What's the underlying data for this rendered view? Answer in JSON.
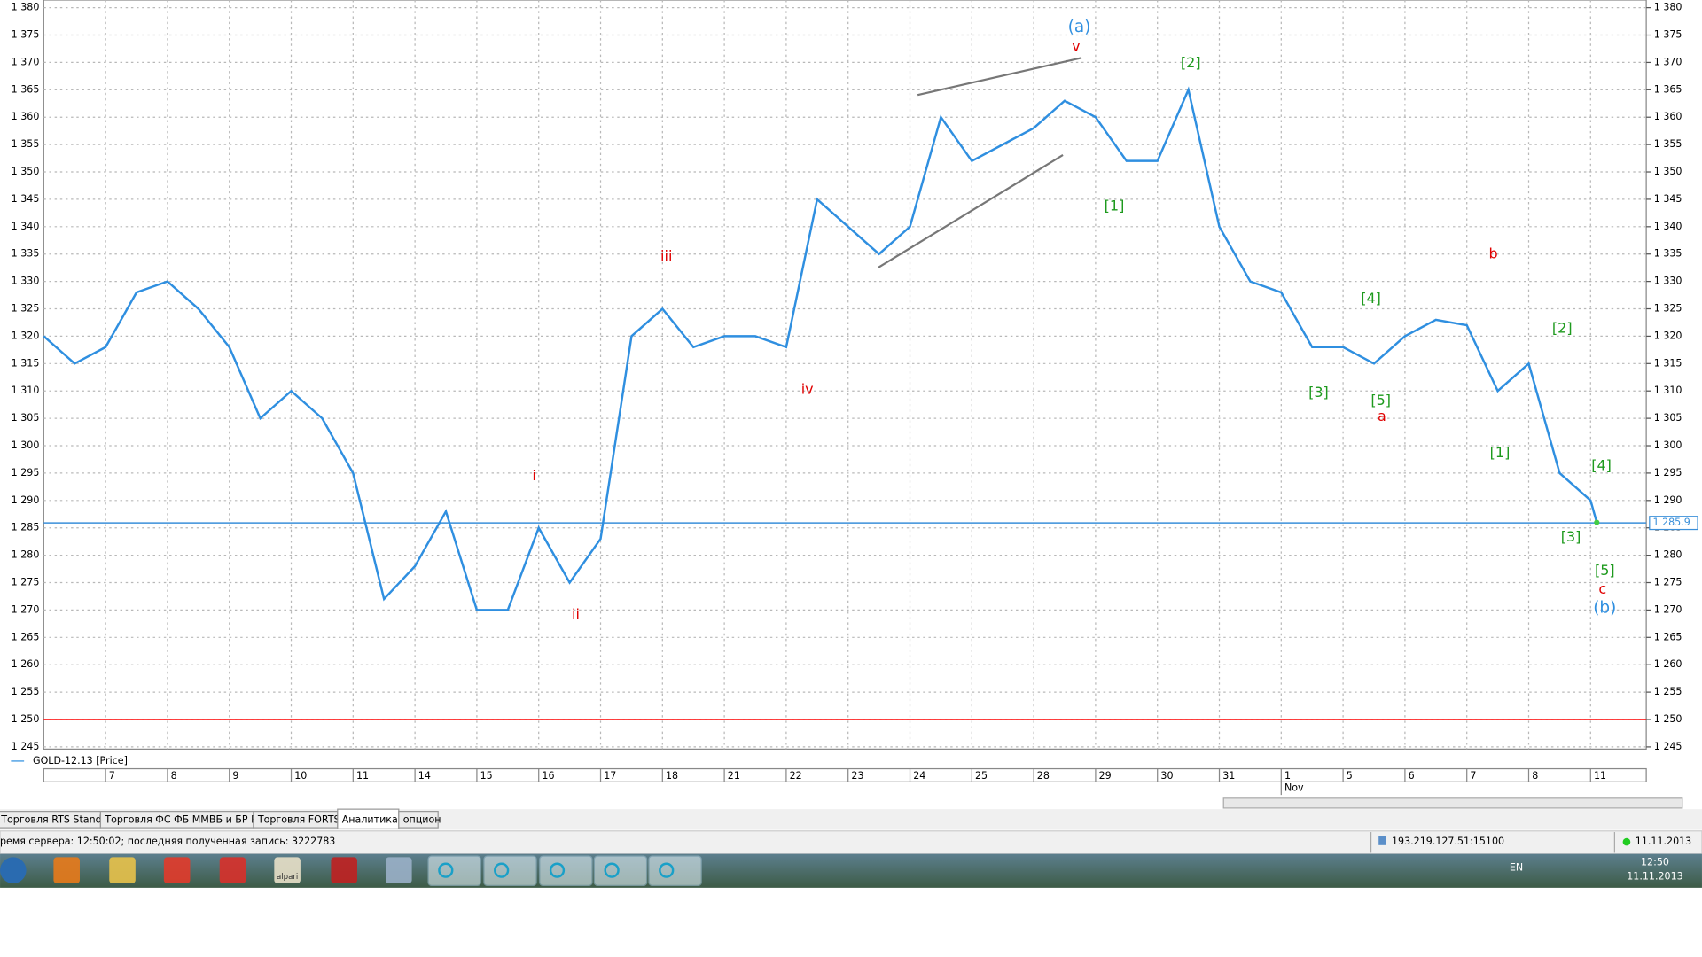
{
  "chart_data": {
    "type": "line",
    "x": [
      -1,
      -0.5,
      0,
      0.5,
      1,
      1.5,
      2,
      2.5,
      3,
      3.5,
      4,
      4.5,
      5,
      5.5,
      6,
      6.5,
      7,
      7.5,
      8,
      8.5,
      9,
      9.5,
      10,
      10.5,
      11,
      11.5,
      12,
      12.5,
      13,
      13.5,
      14,
      14.5,
      15,
      15.5,
      16,
      16.5,
      17,
      17.5,
      18,
      18.5,
      19,
      19.5,
      20,
      20.5,
      21,
      21.5,
      22,
      22.5,
      23,
      23.5,
      24,
      24.1
    ],
    "series": [
      {
        "name": "GOLD-12.13 [Price]",
        "color": "#2f8fe0",
        "values": [
          1320,
          1315,
          1318,
          1328,
          1330,
          1325,
          1318,
          1305,
          1310,
          1305,
          1295,
          1272,
          1278,
          1288,
          1270,
          1270,
          1285,
          1275,
          1283,
          1320,
          1325,
          1318,
          1320,
          1320,
          1318,
          1345,
          1340,
          1335,
          1340,
          1360,
          1352,
          1355,
          1358,
          1363,
          1360,
          1352,
          1352,
          1365,
          1340,
          1330,
          1328,
          1318,
          1318,
          1315,
          1320,
          1323,
          1322,
          1310,
          1315,
          1295,
          1290,
          1286
        ]
      }
    ],
    "xlim": [
      -1,
      24.9
    ],
    "xticks": [
      {
        "value": 0,
        "label": "7"
      },
      {
        "value": 1,
        "label": "8"
      },
      {
        "value": 2,
        "label": "9"
      },
      {
        "value": 3,
        "label": "10"
      },
      {
        "value": 4,
        "label": "11"
      },
      {
        "value": 5,
        "label": "14"
      },
      {
        "value": 6,
        "label": "15"
      },
      {
        "value": 7,
        "label": "16"
      },
      {
        "value": 8,
        "label": "17"
      },
      {
        "value": 9,
        "label": "18"
      },
      {
        "value": 10,
        "label": "21"
      },
      {
        "value": 11,
        "label": "22"
      },
      {
        "value": 12,
        "label": "23"
      },
      {
        "value": 13,
        "label": "24"
      },
      {
        "value": 14,
        "label": "25"
      },
      {
        "value": 15,
        "label": "28"
      },
      {
        "value": 16,
        "label": "29"
      },
      {
        "value": 17,
        "label": "30"
      },
      {
        "value": 18,
        "label": "31"
      },
      {
        "value": 19,
        "label": "1"
      },
      {
        "value": 20,
        "label": "5"
      },
      {
        "value": 21,
        "label": "6"
      },
      {
        "value": 22,
        "label": "7"
      },
      {
        "value": 23,
        "label": "8"
      },
      {
        "value": 24,
        "label": "11"
      }
    ],
    "month_label": "Nov",
    "ylim": [
      1245,
      1380.5
    ],
    "yticks": [
      {
        "value": 1245,
        "label": "1 245"
      },
      {
        "value": 1250,
        "label": "1 250"
      },
      {
        "value": 1255,
        "label": "1 255"
      },
      {
        "value": 1260,
        "label": "1 260"
      },
      {
        "value": 1265,
        "label": "1 265"
      },
      {
        "value": 1270,
        "label": "1 270"
      },
      {
        "value": 1275,
        "label": "1 275"
      },
      {
        "value": 1280,
        "label": "1 280"
      },
      {
        "value": 1285,
        "label": "1 285"
      },
      {
        "value": 1290,
        "label": "1 290"
      },
      {
        "value": 1295,
        "label": "1 295"
      },
      {
        "value": 1300,
        "label": "1 300"
      },
      {
        "value": 1305,
        "label": "1 305"
      },
      {
        "value": 1310,
        "label": "1 310"
      },
      {
        "value": 1315,
        "label": "1 315"
      },
      {
        "value": 1320,
        "label": "1 320"
      },
      {
        "value": 1325,
        "label": "1 325"
      },
      {
        "value": 1330,
        "label": "1 330"
      },
      {
        "value": 1335,
        "label": "1 335"
      },
      {
        "value": 1340,
        "label": "1 340"
      },
      {
        "value": 1345,
        "label": "1 345"
      },
      {
        "value": 1350,
        "label": "1 350"
      },
      {
        "value": 1355,
        "label": "1 355"
      },
      {
        "value": 1360,
        "label": "1 360"
      },
      {
        "value": 1365,
        "label": "1 365"
      },
      {
        "value": 1370,
        "label": "1 370"
      },
      {
        "value": 1375,
        "label": "1 375"
      },
      {
        "value": 1380,
        "label": "1 380"
      }
    ],
    "grid": true,
    "hlines": [
      {
        "value": 1285.9,
        "label": "1 285.9",
        "color": "#3a8fd9"
      },
      {
        "value": 1250,
        "color": "#ff0000"
      }
    ],
    "annotations": [
      {
        "text": "(a)",
        "color": "#2f8fe0"
      },
      {
        "text": "v",
        "color": "#e00000"
      },
      {
        "text": "[2]",
        "color": "#1e9a1e"
      },
      {
        "text": "[1]",
        "color": "#1e9a1e"
      },
      {
        "text": "iii",
        "color": "#e00000"
      },
      {
        "text": "iv",
        "color": "#e00000"
      },
      {
        "text": "i",
        "color": "#e00000"
      },
      {
        "text": "ii",
        "color": "#e00000"
      },
      {
        "text": "[4]",
        "color": "#1e9a1e"
      },
      {
        "text": "[3]",
        "color": "#1e9a1e"
      },
      {
        "text": "[5]",
        "color": "#1e9a1e"
      },
      {
        "text": "a",
        "color": "#e00000"
      },
      {
        "text": "b",
        "color": "#e00000"
      },
      {
        "text": "[2]",
        "color": "#1e9a1e"
      },
      {
        "text": "[1]",
        "color": "#1e9a1e"
      },
      {
        "text": "[4]",
        "color": "#1e9a1e"
      },
      {
        "text": "[3]",
        "color": "#1e9a1e"
      },
      {
        "text": "[5]",
        "color": "#1e9a1e"
      },
      {
        "text": "c",
        "color": "#e00000"
      },
      {
        "text": "(b)",
        "color": "#2f8fe0"
      }
    ]
  },
  "tabs": [
    "Торговля RTS Standard",
    "Торговля ФС ФБ ММВБ и БР РТС",
    "Торговля FORTS",
    "Аналитика",
    "опцион"
  ],
  "status": {
    "server": "ремя сервера: 12:50:02; последняя полученная запись: 3222783",
    "address": "193.219.127.51:15100",
    "date": "11.11.2013"
  },
  "taskbar": {
    "icon_label": "alpari",
    "language": "EN",
    "time": "12:50",
    "date": "11.11.2013"
  }
}
